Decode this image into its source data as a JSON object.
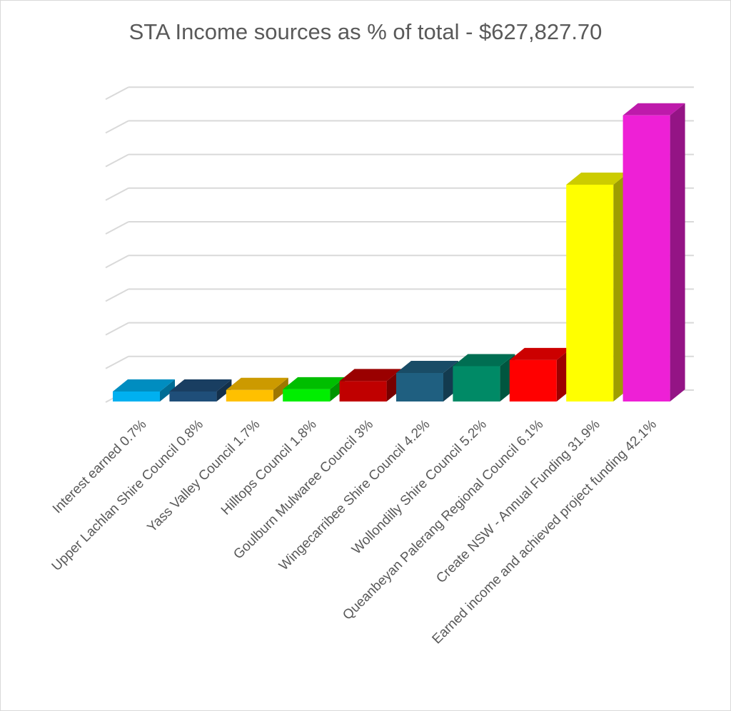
{
  "chart_data": {
    "type": "bar",
    "title": "STA Income sources as % of total - $627,827.70",
    "categories": [
      "Interest earned 0.7%",
      "Upper Lachlan Shire Council 0.8%",
      "Yass Valley Council 1.7%",
      "Hilltops Council 1.8%",
      "Goulburn Mulwaree Council 3%",
      "Wingecarribee Shire Council 4.2%",
      "Wollondilly Shire Council 5.2%",
      "Queanbeyan Palerang Regional Council 6.1%",
      "Create NSW - Annual Funding 31.9%",
      "Earned income and achieved project funding 42.1%"
    ],
    "values": [
      0.7,
      0.8,
      1.7,
      1.8,
      3.0,
      4.2,
      5.2,
      6.1,
      31.9,
      42.1
    ],
    "colors": [
      "#00b0f0",
      "#1f4e79",
      "#ffc000",
      "#00ee00",
      "#c00000",
      "#1f5f80",
      "#008a66",
      "#ff0000",
      "#ffff00",
      "#ee20d6"
    ],
    "ylim": [
      0,
      45
    ],
    "grid": true,
    "three_d": true,
    "legend": "none"
  }
}
